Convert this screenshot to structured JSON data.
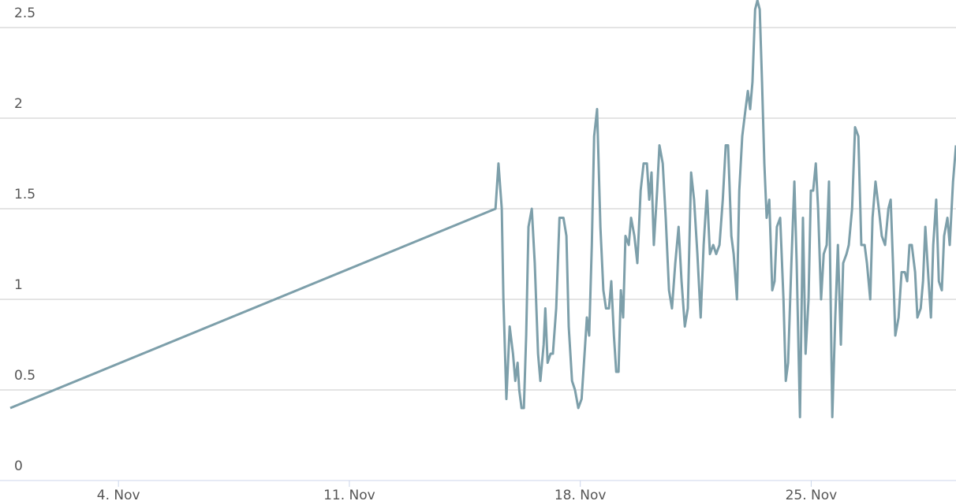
{
  "chart_data": {
    "type": "line",
    "x": [
      0.72,
      15.43,
      15.52,
      15.62,
      15.67,
      15.76,
      15.86,
      15.96,
      16.03,
      16.1,
      16.15,
      16.22,
      16.29,
      16.36,
      16.43,
      16.53,
      16.62,
      16.72,
      16.79,
      16.89,
      16.94,
      17.01,
      17.1,
      17.17,
      17.27,
      17.37,
      17.49,
      17.58,
      17.65,
      17.75,
      17.84,
      17.94,
      18.04,
      18.13,
      18.2,
      18.27,
      18.35,
      18.42,
      18.51,
      18.61,
      18.7,
      18.78,
      18.87,
      18.94,
      19.02,
      19.09,
      19.16,
      19.23,
      19.3,
      19.37,
      19.47,
      19.54,
      19.64,
      19.73,
      19.83,
      19.92,
      20.02,
      20.09,
      20.16,
      20.23,
      20.33,
      20.4,
      20.5,
      20.59,
      20.69,
      20.78,
      20.88,
      20.98,
      21.07,
      21.17,
      21.26,
      21.36,
      21.45,
      21.55,
      21.65,
      21.74,
      21.84,
      21.93,
      22.03,
      22.12,
      22.22,
      22.32,
      22.41,
      22.48,
      22.58,
      22.65,
      22.75,
      22.82,
      22.91,
      23.01,
      23.08,
      23.15,
      23.22,
      23.3,
      23.37,
      23.44,
      23.51,
      23.58,
      23.65,
      23.73,
      23.82,
      23.89,
      23.96,
      24.06,
      24.16,
      24.23,
      24.3,
      24.4,
      24.49,
      24.56,
      24.66,
      24.75,
      24.83,
      24.92,
      24.99,
      25.06,
      25.14,
      25.21,
      25.3,
      25.38,
      25.47,
      25.54,
      25.64,
      25.73,
      25.81,
      25.9,
      25.97,
      26.07,
      26.14,
      26.24,
      26.33,
      26.43,
      26.52,
      26.62,
      26.69,
      26.79,
      26.86,
      26.95,
      27.05,
      27.14,
      27.24,
      27.34,
      27.41,
      27.48,
      27.55,
      27.65,
      27.74,
      27.84,
      27.91,
      27.98,
      28.05,
      28.15,
      28.22,
      28.32,
      28.39,
      28.46,
      28.56,
      28.63,
      28.7,
      28.79,
      28.87,
      28.96,
      29.03,
      29.13,
      29.2,
      29.3,
      29.39
    ],
    "series": [
      {
        "color": "#7d9faa",
        "values": [
          0.4,
          1.5,
          1.75,
          1.5,
          1.0,
          0.45,
          0.85,
          0.7,
          0.55,
          0.65,
          0.5,
          0.4,
          0.4,
          0.8,
          1.4,
          1.5,
          1.2,
          0.7,
          0.55,
          0.75,
          0.95,
          0.65,
          0.7,
          0.7,
          0.95,
          1.45,
          1.45,
          1.35,
          0.85,
          0.55,
          0.5,
          0.4,
          0.45,
          0.7,
          0.9,
          0.8,
          1.3,
          1.9,
          2.05,
          1.4,
          1.05,
          0.95,
          0.95,
          1.1,
          0.8,
          0.6,
          0.6,
          1.05,
          0.9,
          1.35,
          1.3,
          1.45,
          1.35,
          1.2,
          1.6,
          1.75,
          1.75,
          1.55,
          1.7,
          1.3,
          1.6,
          1.85,
          1.75,
          1.45,
          1.05,
          0.95,
          1.2,
          1.4,
          1.1,
          0.85,
          0.95,
          1.7,
          1.55,
          1.25,
          0.9,
          1.3,
          1.6,
          1.25,
          1.3,
          1.25,
          1.3,
          1.55,
          1.85,
          1.85,
          1.35,
          1.25,
          1.0,
          1.6,
          1.9,
          2.05,
          2.15,
          2.05,
          2.2,
          2.6,
          2.65,
          2.6,
          2.2,
          1.75,
          1.45,
          1.55,
          1.05,
          1.1,
          1.4,
          1.45,
          1.0,
          0.55,
          0.65,
          1.2,
          1.65,
          1.2,
          0.35,
          1.45,
          0.7,
          1.0,
          1.6,
          1.6,
          1.75,
          1.5,
          1.0,
          1.25,
          1.3,
          1.65,
          0.35,
          0.9,
          1.3,
          0.75,
          1.2,
          1.25,
          1.3,
          1.5,
          1.95,
          1.9,
          1.3,
          1.3,
          1.2,
          1.0,
          1.45,
          1.65,
          1.5,
          1.35,
          1.3,
          1.5,
          1.55,
          1.2,
          0.8,
          0.9,
          1.15,
          1.15,
          1.1,
          1.3,
          1.3,
          1.15,
          0.9,
          0.95,
          1.1,
          1.4,
          1.1,
          0.9,
          1.3,
          1.55,
          1.1,
          1.05,
          1.35,
          1.45,
          1.3,
          1.65,
          1.85
        ]
      }
    ],
    "xlim": [
      0.72,
      29.39
    ],
    "xticks": [
      {
        "value": 4,
        "label": "4. Nov"
      },
      {
        "value": 11,
        "label": "11. Nov"
      },
      {
        "value": 18,
        "label": "18. Nov"
      },
      {
        "value": 25,
        "label": "25. Nov"
      }
    ],
    "ylim": [
      0,
      2.65
    ],
    "yticks": [
      0,
      0.5,
      1,
      1.5,
      2,
      2.5
    ],
    "grid": true
  }
}
